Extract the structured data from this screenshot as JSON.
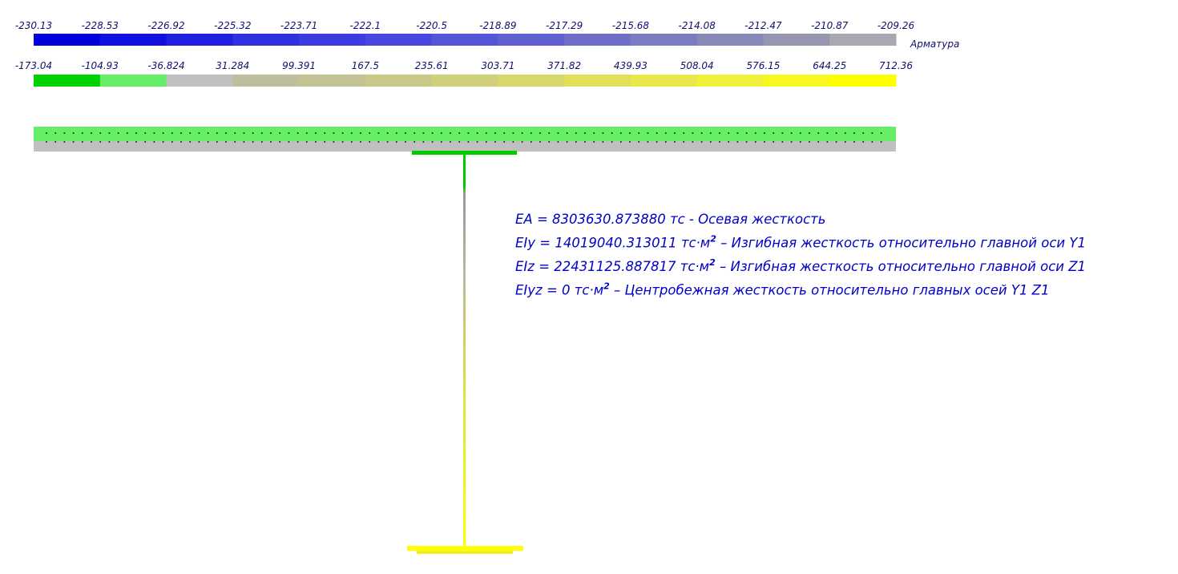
{
  "scales": [
    {
      "labels": [
        "-230.13",
        "-228.53",
        "-226.92",
        "-225.32",
        "-223.71",
        "-222.1",
        "-220.5",
        "-218.89",
        "-217.29",
        "-215.68",
        "-214.08",
        "-212.47",
        "-210.87",
        "-209.26"
      ],
      "colors": [
        "#0000dc",
        "#1010e0",
        "#2020e0",
        "#3030e0",
        "#3c3ce0",
        "#4848e0",
        "#5555d8",
        "#6060d0",
        "#6f6fc8",
        "#7c7cc0",
        "#8888b8",
        "#9696b0",
        "#a8a8b0"
      ],
      "name": "Арматура"
    },
    {
      "labels": [
        "-173.04",
        "-104.93",
        "-36.824",
        "31.284",
        "99.391",
        "167.5",
        "235.61",
        "303.71",
        "371.82",
        "439.93",
        "508.04",
        "576.15",
        "644.25",
        "712.36"
      ],
      "colors": [
        "#00d200",
        "#66ee66",
        "#c0c0c0",
        "#bebe9c",
        "#c2c292",
        "#c8c888",
        "#d0d07a",
        "#d8d86a",
        "#e0e05a",
        "#e8e84a",
        "#f0f03a",
        "#f8f820",
        "#ffff00"
      ]
    }
  ],
  "stiffness": [
    {
      "main": "EA = 8303630.873880 тс - Осевая жесткость"
    },
    {
      "main": "EIy = 14019040.313011 тс·м",
      "sup": "2",
      "rest": " – Изгибная жесткость относительно главной оси Y1"
    },
    {
      "main": "EIz = 22431125.887817 тс·м",
      "sup": "2",
      "rest": " – Изгибная жесткость относительно главной оси Z1"
    },
    {
      "main": "EIyz = 0 тс·м",
      "sup": "2",
      "rest": " – Центробежная жесткость относительно главных осей Y1 Z1"
    }
  ]
}
